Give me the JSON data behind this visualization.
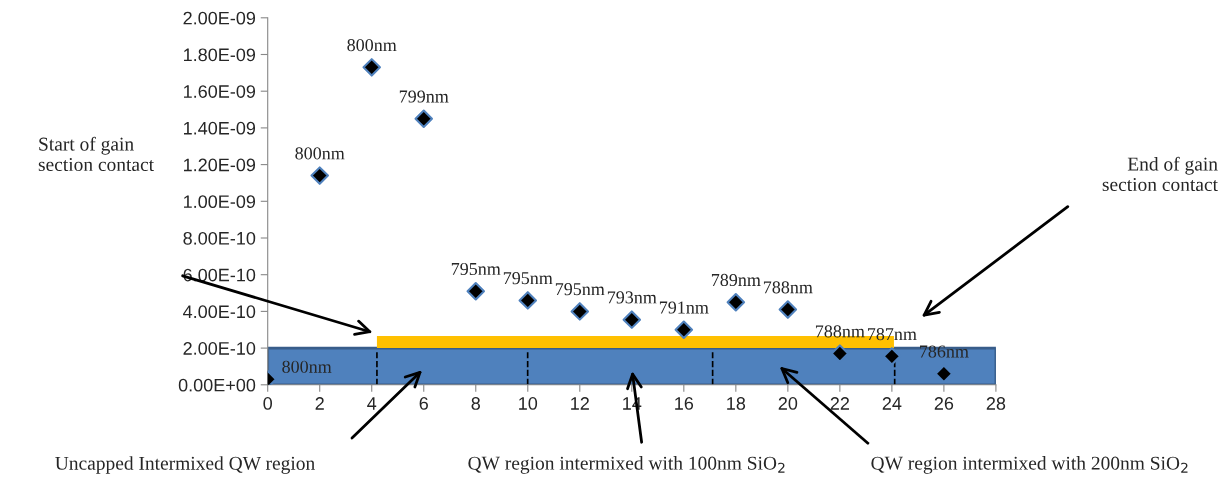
{
  "chart_data": {
    "type": "scatter",
    "x": [
      0,
      2,
      4,
      6,
      8,
      10,
      12,
      14,
      16,
      18,
      20,
      22,
      24,
      26
    ],
    "series": [
      {
        "color": "#000000",
        "values": [
          3e-11,
          1.14e-09,
          1.73e-09,
          1.45e-09,
          5.1e-10,
          4.6e-10,
          4e-10,
          3.55e-10,
          3e-10,
          4.5e-10,
          4.1e-10,
          1.7e-10,
          1.55e-10,
          6e-11
        ]
      }
    ],
    "marker": "diamond",
    "xlim": [
      0,
      28
    ],
    "xticks": [
      0,
      2,
      4,
      6,
      8,
      10,
      12,
      14,
      16,
      18,
      20,
      22,
      24,
      26,
      28
    ],
    "ylim": [
      0,
      2e-09
    ],
    "yticks": [
      {
        "value": 0,
        "label": "0.00E+00"
      },
      {
        "value": 2e-10,
        "label": "2.00E-10"
      },
      {
        "value": 4e-10,
        "label": "4.00E-10"
      },
      {
        "value": 6e-10,
        "label": "6.00E-10"
      },
      {
        "value": 8e-10,
        "label": "8.00E-10"
      },
      {
        "value": 1e-09,
        "label": "1.00E-09"
      },
      {
        "value": 1.2e-09,
        "label": "1.20E-09"
      },
      {
        "value": 1.4e-09,
        "label": "1.40E-09"
      },
      {
        "value": 1.6e-09,
        "label": "1.60E-09"
      },
      {
        "value": 1.8e-09,
        "label": "1.80E-09"
      },
      {
        "value": 2e-09,
        "label": "2.00E-09"
      }
    ],
    "grid": false,
    "legend": false,
    "annotations": [
      {
        "text": "800nm",
        "x": 0,
        "y": 3e-11
      },
      {
        "text": "800nm",
        "x": 2,
        "y": 1.14e-09
      },
      {
        "text": "800nm",
        "x": 4,
        "y": 1.73e-09
      },
      {
        "text": "799nm",
        "x": 6,
        "y": 1.45e-09
      },
      {
        "text": "795nm",
        "x": 8,
        "y": 5.1e-10
      },
      {
        "text": "795nm",
        "x": 10,
        "y": 4.6e-10
      },
      {
        "text": "795nm",
        "x": 12,
        "y": 4e-10
      },
      {
        "text": "793nm",
        "x": 14,
        "y": 3.55e-10
      },
      {
        "text": "791nm",
        "x": 16,
        "y": 3e-10
      },
      {
        "text": "789nm",
        "x": 18,
        "y": 4.5e-10
      },
      {
        "text": "788nm",
        "x": 20,
        "y": 4.1e-10
      },
      {
        "text": "788nm",
        "x": 22,
        "y": 1.7e-10
      },
      {
        "text": "787nm",
        "x": 24,
        "y": 1.55e-10
      },
      {
        "text": "786nm",
        "x": 26,
        "y": 6e-11
      },
      "Start of gain\nsection contact",
      "End of gain\nsection contact",
      "Uncapped Intermixed QW region",
      "QW region intermixed with 100nm SiO$_{2}$",
      "QW region intermixed with 200nm SiO$_{2}$"
    ]
  }
}
